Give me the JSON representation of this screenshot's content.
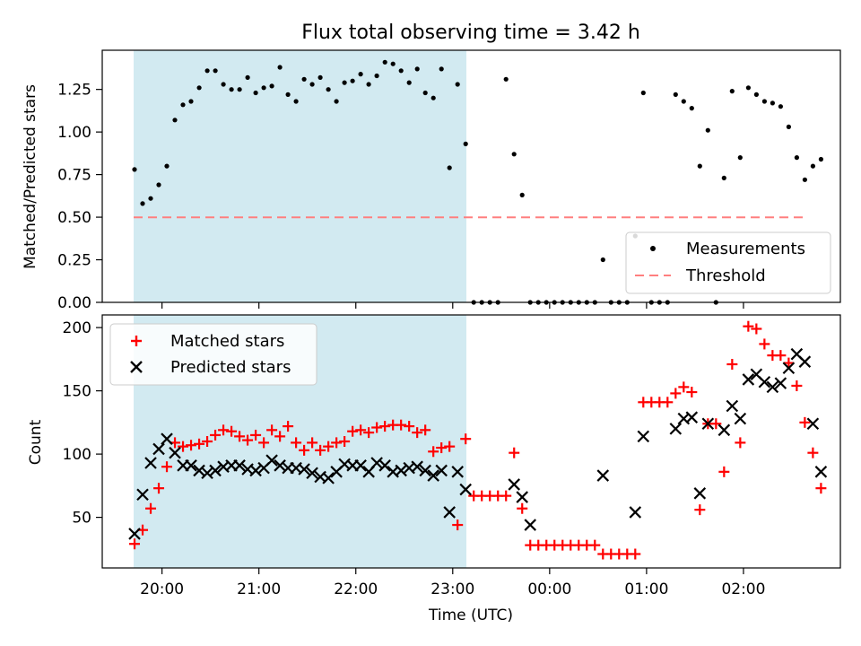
{
  "chart_data": [
    {
      "type": "scatter",
      "title": "Flux total observing time = 3.42 h",
      "xlabel": "",
      "ylabel": "Matched/Predicted stars",
      "ylim": [
        0,
        1.48
      ],
      "yticks": [
        "0.00",
        "0.25",
        "0.50",
        "0.75",
        "1.00",
        "1.25"
      ],
      "legend_position": "lower right",
      "shaded_interval": [
        "19:43",
        "23:03"
      ],
      "shade_color": "#add8e6",
      "series": [
        {
          "name": "Measurements",
          "marker": "dot",
          "color": "#000000",
          "points": [
            [
              "19:43",
              0.78
            ],
            [
              "19:48",
              0.58
            ],
            [
              "19:53",
              0.61
            ],
            [
              "19:58",
              0.69
            ],
            [
              "20:03",
              0.8
            ],
            [
              "20:08",
              1.07
            ],
            [
              "20:13",
              1.16
            ],
            [
              "20:18",
              1.18
            ],
            [
              "20:23",
              1.26
            ],
            [
              "20:28",
              1.36
            ],
            [
              "20:33",
              1.36
            ],
            [
              "20:38",
              1.28
            ],
            [
              "20:43",
              1.25
            ],
            [
              "20:48",
              1.25
            ],
            [
              "20:53",
              1.32
            ],
            [
              "20:58",
              1.23
            ],
            [
              "21:03",
              1.26
            ],
            [
              "21:08",
              1.27
            ],
            [
              "21:13",
              1.38
            ],
            [
              "21:18",
              1.22
            ],
            [
              "21:23",
              1.18
            ],
            [
              "21:28",
              1.31
            ],
            [
              "21:33",
              1.28
            ],
            [
              "21:38",
              1.32
            ],
            [
              "21:43",
              1.25
            ],
            [
              "21:48",
              1.18
            ],
            [
              "21:53",
              1.29
            ],
            [
              "21:58",
              1.3
            ],
            [
              "22:03",
              1.34
            ],
            [
              "22:08",
              1.28
            ],
            [
              "22:13",
              1.33
            ],
            [
              "22:18",
              1.41
            ],
            [
              "22:23",
              1.4
            ],
            [
              "22:28",
              1.36
            ],
            [
              "22:33",
              1.29
            ],
            [
              "22:38",
              1.37
            ],
            [
              "22:43",
              1.23
            ],
            [
              "22:48",
              1.2
            ],
            [
              "22:53",
              1.37
            ],
            [
              "22:58",
              0.79
            ],
            [
              "23:03",
              1.28
            ],
            [
              "23:08",
              0.93
            ],
            [
              "23:13",
              0.0
            ],
            [
              "23:18",
              0.0
            ],
            [
              "23:23",
              0.0
            ],
            [
              "23:28",
              0.0
            ],
            [
              "23:33",
              1.31
            ],
            [
              "23:38",
              0.87
            ],
            [
              "23:43",
              0.63
            ],
            [
              "23:48",
              0.0
            ],
            [
              "23:53",
              0.0
            ],
            [
              "23:58",
              0.0
            ],
            [
              "00:03",
              0.0
            ],
            [
              "00:08",
              0.0
            ],
            [
              "00:13",
              0.0
            ],
            [
              "00:18",
              0.0
            ],
            [
              "00:23",
              0.0
            ],
            [
              "00:28",
              0.0
            ],
            [
              "00:33",
              0.25
            ],
            [
              "00:38",
              0.0
            ],
            [
              "00:43",
              0.0
            ],
            [
              "00:48",
              0.0
            ],
            [
              "00:53",
              0.39
            ],
            [
              "00:58",
              1.23
            ],
            [
              "01:03",
              0.0
            ],
            [
              "01:08",
              0.0
            ],
            [
              "01:13",
              0.0
            ],
            [
              "01:18",
              1.22
            ],
            [
              "01:23",
              1.18
            ],
            [
              "01:28",
              1.14
            ],
            [
              "01:33",
              0.8
            ],
            [
              "01:38",
              1.01
            ],
            [
              "01:43",
              0.0
            ],
            [
              "01:48",
              0.73
            ],
            [
              "01:53",
              1.24
            ],
            [
              "01:58",
              0.85
            ],
            [
              "02:03",
              1.26
            ],
            [
              "02:08",
              1.22
            ],
            [
              "02:13",
              1.18
            ],
            [
              "02:18",
              1.17
            ],
            [
              "02:23",
              1.15
            ],
            [
              "02:28",
              1.03
            ],
            [
              "02:33",
              0.85
            ],
            [
              "02:38",
              0.72
            ],
            [
              "02:43",
              0.8
            ],
            [
              "02:48",
              0.84
            ]
          ]
        },
        {
          "name": "Threshold",
          "marker": "dashed-line",
          "color": "#ff7f7f",
          "points": [
            [
              "19:43",
              0.5
            ],
            [
              "02:48",
              0.5
            ]
          ]
        }
      ]
    },
    {
      "type": "scatter",
      "title": "",
      "xlabel": "Time (UTC)",
      "ylabel": "Count",
      "ylim": [
        10,
        210
      ],
      "yticks": [
        "50",
        "100",
        "150",
        "200"
      ],
      "xticks": [
        "20:00",
        "21:00",
        "22:00",
        "23:00",
        "00:00",
        "01:00",
        "02:00"
      ],
      "xlim": [
        "19:23",
        "03:00"
      ],
      "legend_position": "upper left",
      "series": [
        {
          "name": "Matched stars",
          "marker": "plus",
          "color": "#ff0000",
          "points": [
            [
              "19:43",
              29
            ],
            [
              "19:48",
              40
            ],
            [
              "19:53",
              57
            ],
            [
              "19:58",
              73
            ],
            [
              "20:03",
              90
            ],
            [
              "20:08",
              109
            ],
            [
              "20:13",
              106
            ],
            [
              "20:18",
              107
            ],
            [
              "20:23",
              108
            ],
            [
              "20:28",
              110
            ],
            [
              "20:33",
              115
            ],
            [
              "20:38",
              119
            ],
            [
              "20:43",
              118
            ],
            [
              "20:48",
              114
            ],
            [
              "20:53",
              111
            ],
            [
              "20:58",
              115
            ],
            [
              "21:03",
              109
            ],
            [
              "21:08",
              119
            ],
            [
              "21:13",
              114
            ],
            [
              "21:18",
              122
            ],
            [
              "21:23",
              109
            ],
            [
              "21:28",
              103
            ],
            [
              "21:33",
              109
            ],
            [
              "21:38",
              103
            ],
            [
              "21:43",
              106
            ],
            [
              "21:48",
              109
            ],
            [
              "21:53",
              110
            ],
            [
              "21:58",
              118
            ],
            [
              "22:03",
              119
            ],
            [
              "22:08",
              117
            ],
            [
              "22:13",
              121
            ],
            [
              "22:18",
              122
            ],
            [
              "22:23",
              123
            ],
            [
              "22:28",
              123
            ],
            [
              "22:33",
              122
            ],
            [
              "22:38",
              117
            ],
            [
              "22:43",
              119
            ],
            [
              "22:48",
              102
            ],
            [
              "22:53",
              105
            ],
            [
              "22:58",
              106
            ],
            [
              "23:03",
              44
            ],
            [
              "23:08",
              112
            ],
            [
              "23:13",
              67
            ],
            [
              "23:18",
              67
            ],
            [
              "23:23",
              67
            ],
            [
              "23:28",
              67
            ],
            [
              "23:33",
              67
            ],
            [
              "23:38",
              101
            ],
            [
              "23:43",
              57
            ],
            [
              "23:48",
              28
            ],
            [
              "23:53",
              28
            ],
            [
              "23:58",
              28
            ],
            [
              "00:03",
              28
            ],
            [
              "00:08",
              28
            ],
            [
              "00:13",
              28
            ],
            [
              "00:18",
              28
            ],
            [
              "00:23",
              28
            ],
            [
              "00:28",
              28
            ],
            [
              "00:33",
              21
            ],
            [
              "00:38",
              21
            ],
            [
              "00:43",
              21
            ],
            [
              "00:48",
              21
            ],
            [
              "00:53",
              21
            ],
            [
              "00:58",
              141
            ],
            [
              "01:03",
              141
            ],
            [
              "01:08",
              141
            ],
            [
              "01:13",
              141
            ],
            [
              "01:18",
              148
            ],
            [
              "01:23",
              153
            ],
            [
              "01:28",
              149
            ],
            [
              "01:33",
              56
            ],
            [
              "01:38",
              124
            ],
            [
              "01:43",
              124
            ],
            [
              "01:48",
              86
            ],
            [
              "01:53",
              171
            ],
            [
              "01:58",
              109
            ],
            [
              "02:03",
              201
            ],
            [
              "02:08",
              199
            ],
            [
              "02:13",
              187
            ],
            [
              "02:18",
              178
            ],
            [
              "02:23",
              178
            ],
            [
              "02:28",
              172
            ],
            [
              "02:33",
              154
            ],
            [
              "02:38",
              125
            ],
            [
              "02:43",
              101
            ],
            [
              "02:48",
              73
            ]
          ]
        },
        {
          "name": "Predicted stars",
          "marker": "x",
          "color": "#000000",
          "points": [
            [
              "19:43",
              37
            ],
            [
              "19:48",
              68
            ],
            [
              "19:53",
              93
            ],
            [
              "19:58",
              104
            ],
            [
              "20:03",
              112
            ],
            [
              "20:08",
              101
            ],
            [
              "20:13",
              91
            ],
            [
              "20:18",
              91
            ],
            [
              "20:23",
              87
            ],
            [
              "20:28",
              85
            ],
            [
              "20:33",
              87
            ],
            [
              "20:38",
              90
            ],
            [
              "20:43",
              91
            ],
            [
              "20:48",
              91
            ],
            [
              "20:53",
              88
            ],
            [
              "20:58",
              87
            ],
            [
              "21:03",
              89
            ],
            [
              "21:08",
              95
            ],
            [
              "21:13",
              91
            ],
            [
              "21:18",
              89
            ],
            [
              "21:23",
              89
            ],
            [
              "21:28",
              88
            ],
            [
              "21:33",
              85
            ],
            [
              "21:38",
              82
            ],
            [
              "21:43",
              81
            ],
            [
              "21:48",
              86
            ],
            [
              "21:53",
              92
            ],
            [
              "21:58",
              91
            ],
            [
              "22:03",
              91
            ],
            [
              "22:08",
              86
            ],
            [
              "22:13",
              93
            ],
            [
              "22:18",
              91
            ],
            [
              "22:23",
              86
            ],
            [
              "22:28",
              87
            ],
            [
              "22:33",
              89
            ],
            [
              "22:38",
              90
            ],
            [
              "22:43",
              87
            ],
            [
              "22:48",
              83
            ],
            [
              "22:53",
              87
            ],
            [
              "22:58",
              54
            ],
            [
              "23:03",
              86
            ],
            [
              "23:08",
              72
            ],
            [
              "23:38",
              76
            ],
            [
              "23:43",
              66
            ],
            [
              "23:48",
              44
            ],
            [
              "00:33",
              83
            ],
            [
              "00:53",
              54
            ],
            [
              "00:58",
              114
            ],
            [
              "01:18",
              120
            ],
            [
              "01:23",
              128
            ],
            [
              "01:28",
              129
            ],
            [
              "01:33",
              69
            ],
            [
              "01:38",
              124
            ],
            [
              "01:48",
              119
            ],
            [
              "01:53",
              138
            ],
            [
              "01:58",
              128
            ],
            [
              "02:03",
              159
            ],
            [
              "02:08",
              163
            ],
            [
              "02:13",
              157
            ],
            [
              "02:18",
              153
            ],
            [
              "02:23",
              156
            ],
            [
              "02:28",
              168
            ],
            [
              "02:33",
              179
            ],
            [
              "02:38",
              173
            ],
            [
              "02:43",
              124
            ],
            [
              "02:48",
              86
            ]
          ]
        }
      ]
    }
  ]
}
